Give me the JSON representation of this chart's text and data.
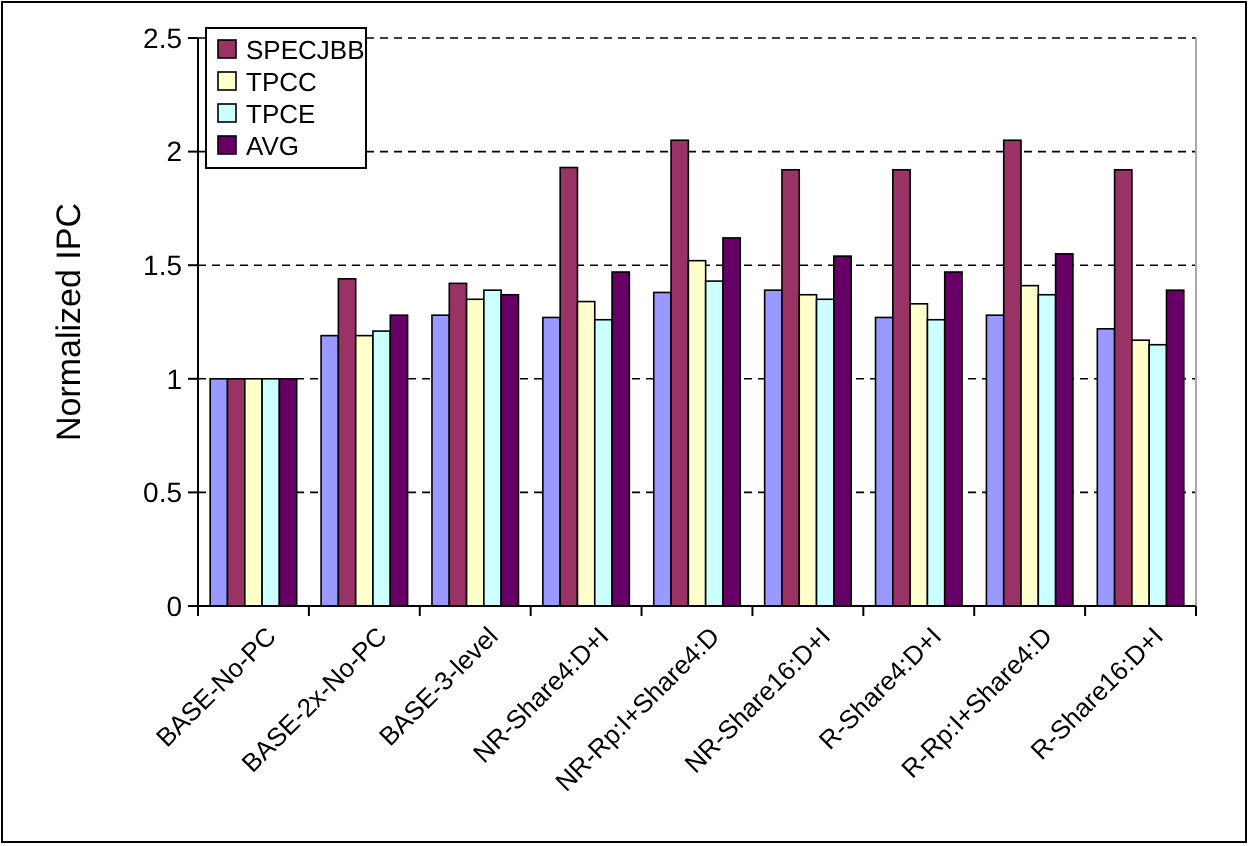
{
  "chart_data": {
    "type": "bar",
    "ylabel": "Normalized IPC",
    "categories": [
      "BASE-No-PC",
      "BASE-2x-No-PC",
      "BASE-3-level",
      "NR-Share4:D+I",
      "NR-Rp:I+Share4:D",
      "NR-Share16:D+I",
      "R-Share4:D+I",
      "R-Rp:I+Share4:D",
      "R-Share16:D+I"
    ],
    "series": [
      {
        "color": "#9999ff",
        "values": [
          1,
          1.19,
          1.28,
          1.27,
          1.38,
          1.39,
          1.27,
          1.28,
          1.22
        ]
      },
      {
        "name": "SPECJBB",
        "color": "#993366",
        "values": [
          1,
          1.44,
          1.42,
          1.93,
          2.05,
          1.92,
          1.92,
          2.05,
          1.92
        ]
      },
      {
        "name": "TPCC",
        "color": "#ffffcc",
        "values": [
          1,
          1.19,
          1.35,
          1.34,
          1.52,
          1.37,
          1.33,
          1.41,
          1.17
        ]
      },
      {
        "name": "TPCE",
        "color": "#ccffff",
        "values": [
          1,
          1.21,
          1.39,
          1.26,
          1.43,
          1.35,
          1.26,
          1.37,
          1.15
        ]
      },
      {
        "name": "AVG",
        "color": "#660066",
        "values": [
          1,
          1.28,
          1.37,
          1.47,
          1.62,
          1.54,
          1.47,
          1.55,
          1.39
        ]
      }
    ],
    "ylim": [
      0,
      2.5
    ],
    "yticks": [
      0,
      0.5,
      1,
      1.5,
      2,
      2.5
    ],
    "grid": "y",
    "legend": "top left"
  }
}
